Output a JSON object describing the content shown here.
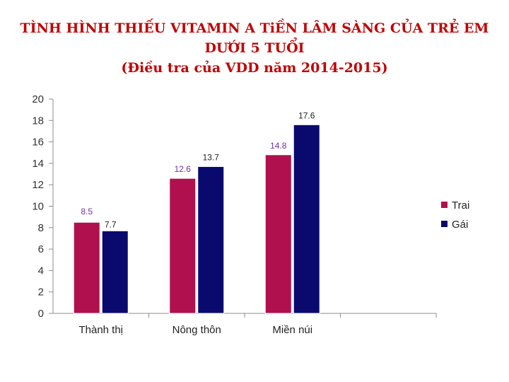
{
  "title_lines": [
    "TÌNH HÌNH THIẾU VITAMIN A TiỀN LÂM SÀNG CỦA TRẺ EM",
    "DƯỚI 5 TUỔI",
    "(Điều tra của VDD năm 2014-2015)"
  ],
  "chart_data": {
    "type": "bar",
    "title": "TÌNH HÌNH THIẾU VITAMIN A TiỀN LÂM SÀNG CỦA TRẺ EM DƯỚI 5 TUỔI (Điều tra của VDD năm 2014-2015)",
    "categories": [
      "Thành thị",
      "Nông thôn",
      "Miền núi"
    ],
    "series": [
      {
        "name": "Trai",
        "values": [
          8.5,
          12.6,
          14.8
        ],
        "labels": [
          "8.5",
          "12.6",
          "14.8"
        ],
        "color": "#b0104d",
        "label_color": "#7030a0"
      },
      {
        "name": "Gái",
        "values": [
          7.7,
          13.7,
          17.6
        ],
        "labels": [
          "7.7",
          "13.7",
          "17.6"
        ],
        "color": "#0a0a6e",
        "label_color": "#222222"
      }
    ],
    "ylim": [
      0,
      20
    ],
    "yticks": [
      "0",
      "2",
      "4",
      "6",
      "8",
      "10",
      "12",
      "14",
      "16",
      "18",
      "20"
    ],
    "grid": false,
    "legend": "right",
    "xlabel": "",
    "ylabel": ""
  }
}
